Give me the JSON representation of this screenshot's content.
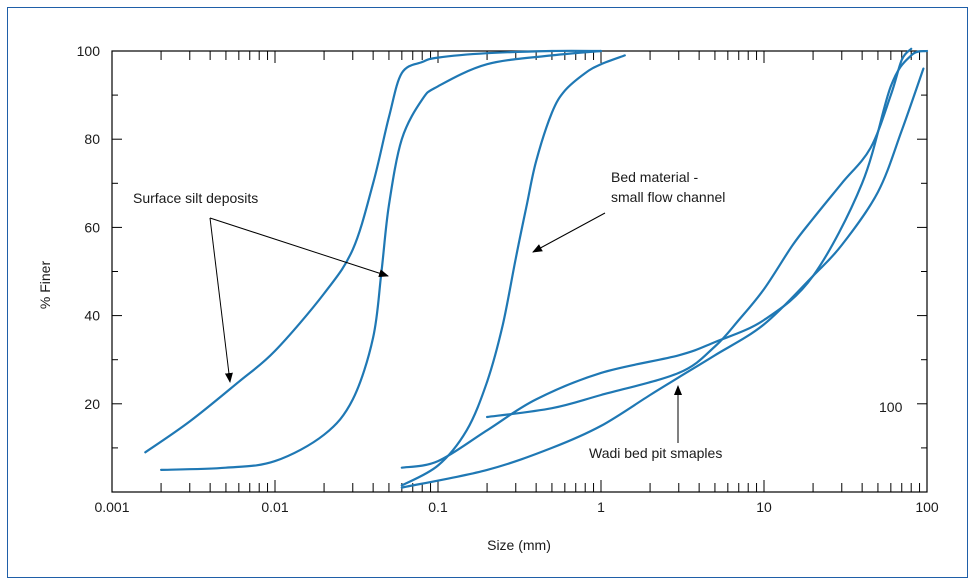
{
  "chart_data": {
    "type": "line",
    "xlabel": "Size (mm)",
    "ylabel": "% Finer",
    "x_scale": "log",
    "xlim": [
      0.001,
      100
    ],
    "ylim": [
      0,
      100
    ],
    "x_ticks": [
      "0.001",
      "0.01",
      "0.1",
      "1",
      "10",
      "100"
    ],
    "y_ticks": [
      "20",
      "40",
      "60",
      "80",
      "100"
    ],
    "line_color": "#1f78b4",
    "frame_color": "#1f5fa8",
    "series": [
      {
        "x": [
          0.0016,
          0.003,
          0.006,
          0.01,
          0.02,
          0.03,
          0.04,
          0.05,
          0.06,
          0.08,
          0.1,
          0.2,
          0.5,
          1.0
        ],
        "y": [
          9,
          16,
          25,
          32,
          45,
          55,
          70,
          85,
          95,
          97.5,
          98.5,
          99.5,
          100,
          100
        ]
      },
      {
        "x": [
          0.002,
          0.005,
          0.01,
          0.02,
          0.03,
          0.04,
          0.045,
          0.05,
          0.06,
          0.08,
          0.1,
          0.2,
          0.5,
          1.0
        ],
        "y": [
          5,
          5.5,
          7,
          13,
          21,
          35,
          50,
          65,
          80,
          89,
          92,
          97,
          99,
          100
        ]
      },
      {
        "x": [
          0.06,
          0.1,
          0.15,
          0.2,
          0.25,
          0.3,
          0.35,
          0.4,
          0.5,
          0.6,
          0.8,
          1.0,
          1.4
        ],
        "y": [
          1.5,
          6,
          14,
          25,
          38,
          53,
          65,
          75,
          86,
          91,
          95,
          97,
          99
        ]
      },
      {
        "x": [
          0.06,
          0.1,
          0.2,
          0.4,
          1.0,
          3.0,
          5.0,
          10,
          20,
          40,
          60,
          80,
          100
        ],
        "y": [
          5.5,
          7,
          14,
          21,
          27,
          31,
          34,
          39,
          49,
          70,
          92,
          99,
          100
        ]
      },
      {
        "x": [
          0.2,
          0.5,
          1.0,
          3.0,
          5.0,
          7.0,
          10,
          15,
          20,
          30,
          45,
          60,
          70,
          80
        ],
        "y": [
          17,
          19,
          22,
          27,
          33,
          39,
          46,
          56,
          62,
          70,
          78,
          90,
          98,
          100.5
        ]
      },
      {
        "x": [
          0.06,
          0.2,
          0.5,
          1.0,
          2.0,
          3.0,
          5.0,
          10,
          20,
          30,
          50,
          70,
          95
        ],
        "y": [
          1,
          5,
          10,
          15,
          22,
          26,
          31,
          38,
          49,
          56,
          68,
          82,
          96
        ]
      }
    ],
    "annotations": [
      {
        "text": "Surface silt deposits"
      },
      {
        "text": "Bed material -"
      },
      {
        "text": "small flow channel"
      },
      {
        "text": "Wadi bed pit smaples"
      },
      {
        "text": "100"
      }
    ]
  }
}
